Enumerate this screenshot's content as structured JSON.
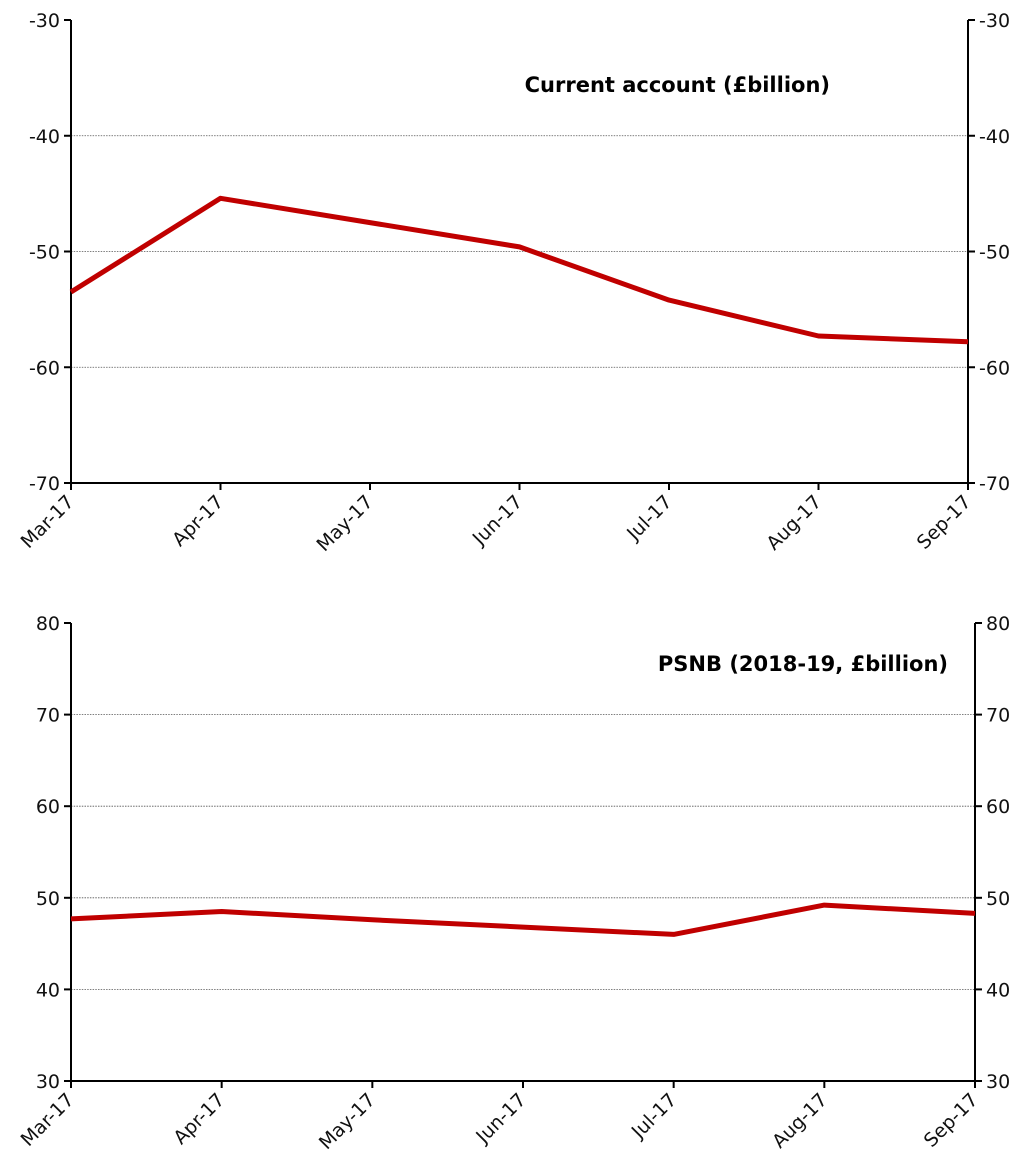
{
  "chart_data": [
    {
      "type": "line",
      "title": "Current account (£billion)",
      "xlabel": "",
      "ylabel": "",
      "categories": [
        "Mar-17",
        "Apr-17",
        "May-17",
        "Jun-17",
        "Jul-17",
        "Aug-17",
        "Sep-17"
      ],
      "ylim": [
        -70,
        -30
      ],
      "yticks": [
        "-30",
        "-40",
        "-50",
        "-60",
        "-70"
      ],
      "ytick_values": [
        -30,
        -40,
        -50,
        -60,
        -70
      ],
      "grid": true,
      "line_color": "#c00000",
      "series": [
        {
          "values": [
            -53.5,
            -45.4,
            -47.5,
            -49.6,
            -54.2,
            -57.3,
            -57.8
          ]
        }
      ]
    },
    {
      "type": "line",
      "title": "PSNB (2018-19, £billion)",
      "xlabel": "",
      "ylabel": "",
      "categories": [
        "Mar-17",
        "Apr-17",
        "May-17",
        "Jun-17",
        "Jul-17",
        "Aug-17",
        "Sep-17"
      ],
      "ylim": [
        30,
        80
      ],
      "yticks": [
        "80",
        "70",
        "60",
        "50",
        "40",
        "30"
      ],
      "ytick_values": [
        80,
        70,
        60,
        50,
        40,
        30
      ],
      "grid": true,
      "line_color": "#c00000",
      "series": [
        {
          "values": [
            47.7,
            48.5,
            47.6,
            46.8,
            46.0,
            49.2,
            48.3
          ]
        }
      ]
    }
  ]
}
